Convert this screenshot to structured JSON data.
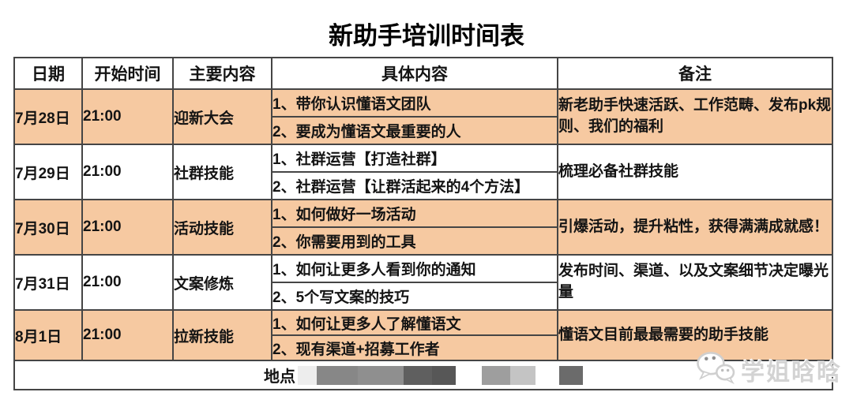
{
  "title": "新助手培训时间表",
  "table": {
    "headers": [
      "日期",
      "开始时间",
      "主要内容",
      "具体内容",
      "备注"
    ],
    "rows": [
      {
        "date": "7月28日",
        "time": "21:00",
        "topic": "迎新大会",
        "item1": "1、带你认识懂语文团队",
        "item2": "2、要成为懂语文最重要的人",
        "note": "新老助手快速活跃、工作范畴、发布pk规则、我们的福利",
        "highlight": true
      },
      {
        "date": "7月29日",
        "time": "21:00",
        "topic": "社群技能",
        "item1": "1、社群运营【打造社群】",
        "item2": "2、社群运营【让群活起来的4个方法】",
        "note": "梳理必备社群技能",
        "highlight": false
      },
      {
        "date": "7月30日",
        "time": "21:00",
        "topic": "活动技能",
        "item1": "1、如何做好一场活动",
        "item2": "2、你需要用到的工具",
        "note": "引爆活动，提升粘性，获得满满成就感！",
        "highlight": true
      },
      {
        "date": "7月31日",
        "time": "21:00",
        "topic": "文案修炼",
        "item1": "1、如何让更多人看到你的通知",
        "item2": "2、5个写文案的技巧",
        "note": "发布时间、渠道、以及文案细节决定曝光量",
        "highlight": false
      },
      {
        "date": "8月1日",
        "time": "21:00",
        "topic": "拉新技能",
        "item1": "1、如何让更多人了解懂语文",
        "item2": "2、现有渠道+招募工作者",
        "note": "懂语文目前最最需要的助手技能",
        "highlight": true
      }
    ],
    "footer": {
      "label": "地点",
      "redaction_groups": [
        {
          "gap": 3,
          "blocks": [
            {
              "w": 24,
              "color": "#ededed"
            },
            {
              "w": 52,
              "color": "#878787"
            },
            {
              "w": 58,
              "color": "#8f8f8f"
            },
            {
              "w": 36,
              "color": "#5f5f5f"
            },
            {
              "w": 30,
              "color": "#575757"
            }
          ]
        },
        {
          "gap": 33,
          "blocks": [
            {
              "w": 36,
              "color": "#9e9e9e"
            },
            {
              "w": 32,
              "color": "#c4c4c4"
            }
          ]
        },
        {
          "gap": 30,
          "blocks": [
            {
              "w": 30,
              "color": "#6b6b6b"
            }
          ]
        }
      ]
    }
  },
  "watermark": {
    "text": "学姐晗晗",
    "icon": "wechat-icon"
  },
  "colors": {
    "highlight_row": "#f6c9a1",
    "table_border": "#454545",
    "watermark_text": "#d3d3d3"
  }
}
